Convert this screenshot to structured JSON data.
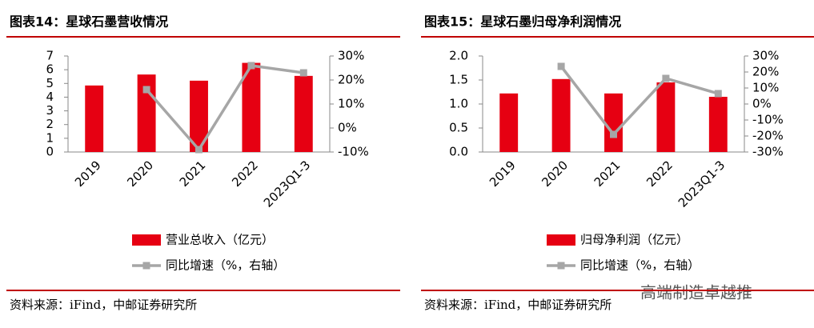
{
  "chart_data": [
    {
      "type": "combo",
      "title": "图表14：星球石墨营收情况",
      "categories": [
        "2019",
        "2020",
        "2021",
        "2022",
        "2023Q1-3"
      ],
      "series": [
        {
          "name": "营业总收入（亿元）",
          "type": "bar",
          "color": "#e60012",
          "values": [
            4.85,
            5.65,
            5.2,
            6.5,
            5.55
          ]
        },
        {
          "name": "同比增速（%，右轴）",
          "type": "line",
          "axis": "y2",
          "color": "#a6a6a6",
          "values": [
            null,
            16,
            -9,
            26,
            23
          ]
        }
      ],
      "ylim": [
        0,
        7
      ],
      "yticks": [
        0,
        1,
        2,
        3,
        4,
        5,
        6,
        7
      ],
      "y2lim": [
        -10,
        30
      ],
      "y2ticks": [
        {
          "value": -10,
          "label": "-10%"
        },
        {
          "value": 0,
          "label": "0%"
        },
        {
          "value": 10,
          "label": "10%"
        },
        {
          "value": 20,
          "label": "20%"
        },
        {
          "value": 30,
          "label": "30%"
        }
      ],
      "source": "资料来源：iFind，中邮证券研究所"
    },
    {
      "type": "combo",
      "title": "图表15：星球石墨归母净利润情况",
      "categories": [
        "2019",
        "2020",
        "2021",
        "2022",
        "2023Q1-3"
      ],
      "series": [
        {
          "name": "归母净利润（亿元）",
          "type": "bar",
          "color": "#e60012",
          "values": [
            1.22,
            1.52,
            1.22,
            1.45,
            1.15
          ]
        },
        {
          "name": "同比增速（%，右轴）",
          "type": "line",
          "axis": "y2",
          "color": "#a6a6a6",
          "values": [
            null,
            23.5,
            -19,
            16,
            6.5
          ]
        }
      ],
      "ylim": [
        0,
        2
      ],
      "yticks": [
        {
          "value": 0,
          "label": "0.0"
        },
        {
          "value": 0.5,
          "label": "0.5"
        },
        {
          "value": 1,
          "label": "1.0"
        },
        {
          "value": 1.5,
          "label": "1.5"
        },
        {
          "value": 2,
          "label": "2.0"
        }
      ],
      "y2lim": [
        -30,
        30
      ],
      "y2ticks": [
        {
          "value": -30,
          "label": "-30%"
        },
        {
          "value": -20,
          "label": "-20%"
        },
        {
          "value": -10,
          "label": "-10%"
        },
        {
          "value": 0,
          "label": "0%"
        },
        {
          "value": 10,
          "label": "10%"
        },
        {
          "value": 20,
          "label": "20%"
        },
        {
          "value": 30,
          "label": "30%"
        }
      ],
      "source": "资料来源：iFind，中邮证券研究所"
    }
  ],
  "watermark": "高端制造卓越推"
}
